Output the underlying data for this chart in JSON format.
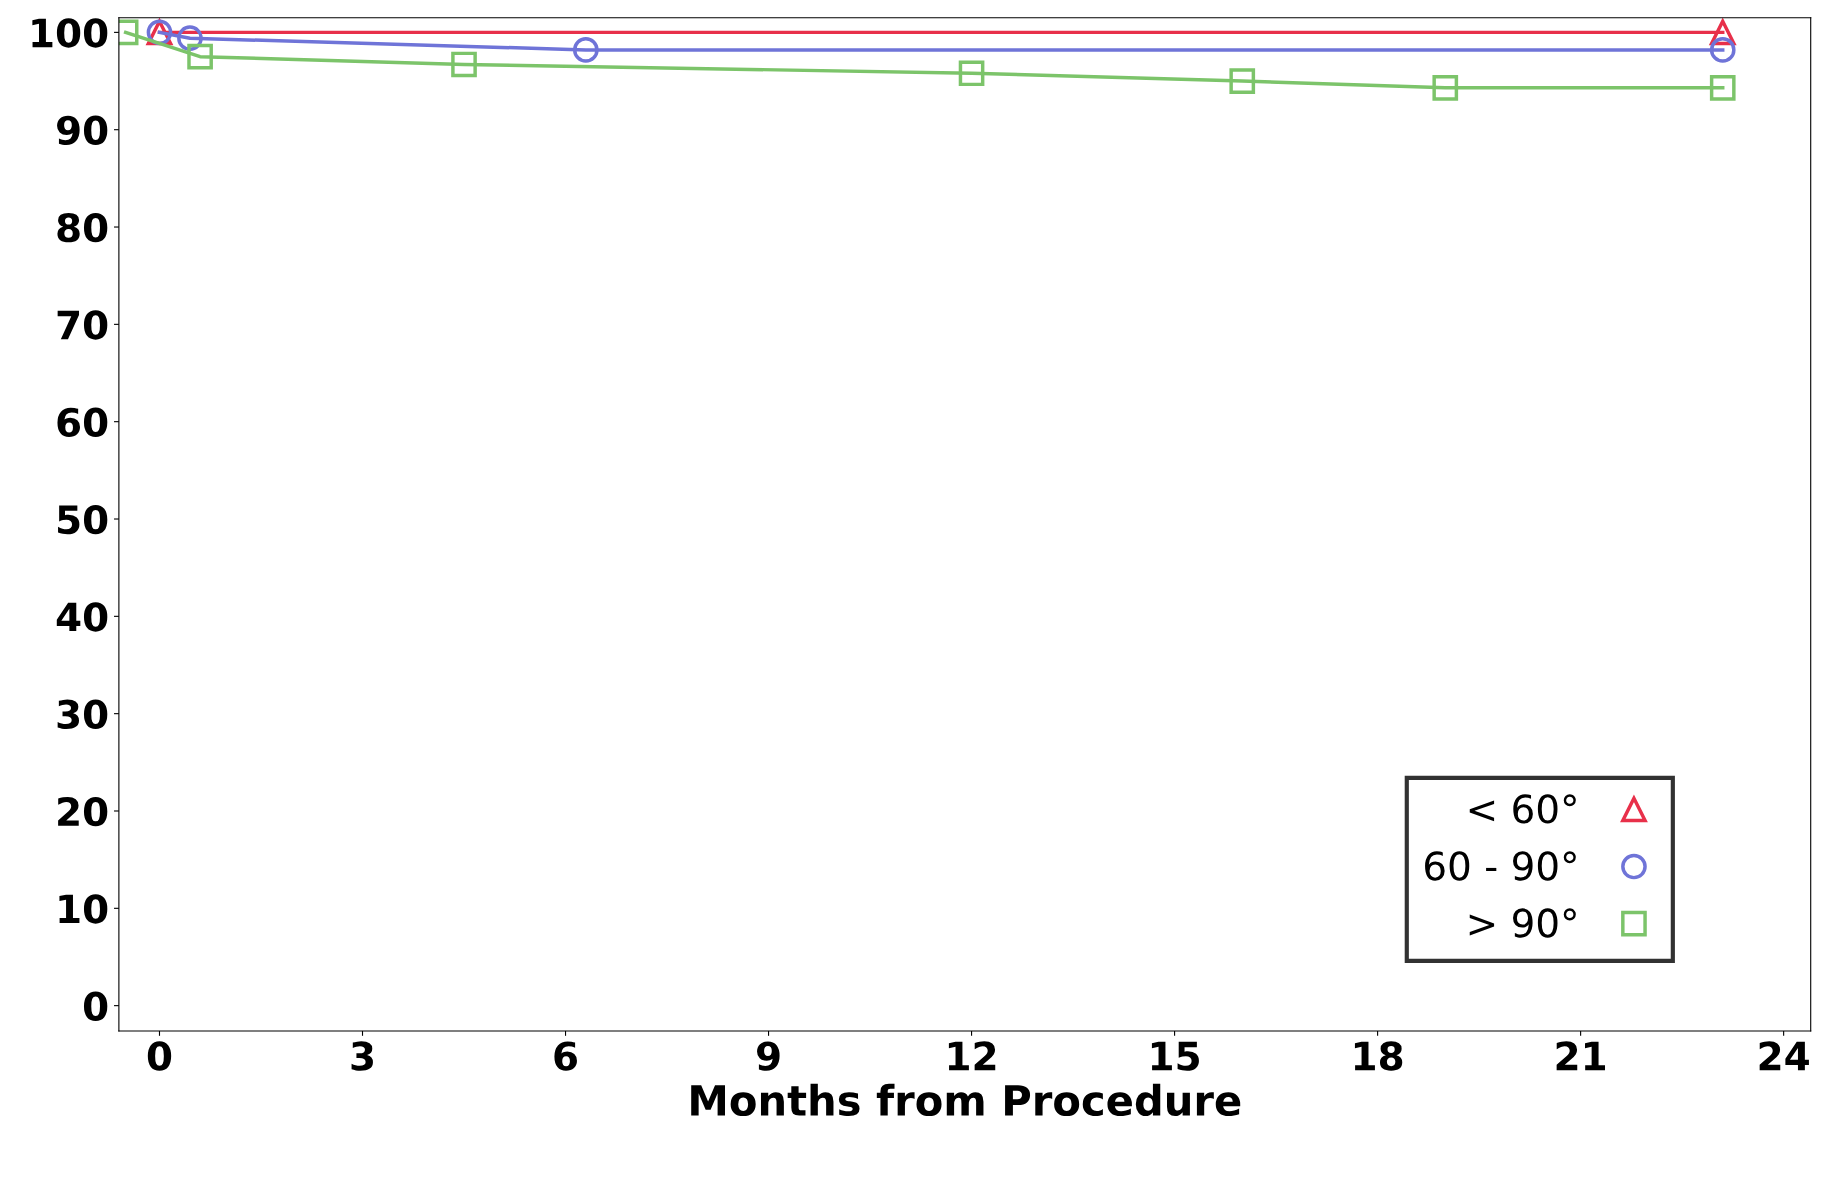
{
  "chart_data": {
    "type": "line",
    "xlabel": "Months from Procedure",
    "xlim": [
      -0.6,
      24.4
    ],
    "ylim": [
      -2.6,
      101.5
    ],
    "xticks": [
      0,
      3,
      6,
      9,
      12,
      15,
      18,
      21,
      24
    ],
    "yticks": [
      0,
      10,
      20,
      30,
      40,
      50,
      60,
      70,
      80,
      90,
      100
    ],
    "grid": false,
    "legend": "bottom right",
    "line_style": "solid",
    "series": [
      {
        "name": "< 60°",
        "color": "#e8304a",
        "marker": "triangle",
        "x": [
          0,
          23.1
        ],
        "values": [
          100,
          100
        ]
      },
      {
        "name": "60 - 90°",
        "color": "#6f74d8",
        "marker": "circle",
        "x": [
          0,
          0.45,
          6.3,
          23.1
        ],
        "values": [
          100,
          99.4,
          98.2,
          98.2
        ]
      },
      {
        "name": "> 90°",
        "color": "#7cc46a",
        "marker": "square",
        "x": [
          -0.5,
          0.6,
          4.5,
          12,
          16,
          19,
          23.1
        ],
        "values": [
          100,
          97.5,
          96.7,
          95.8,
          95.0,
          94.3,
          94.3
        ]
      }
    ]
  }
}
